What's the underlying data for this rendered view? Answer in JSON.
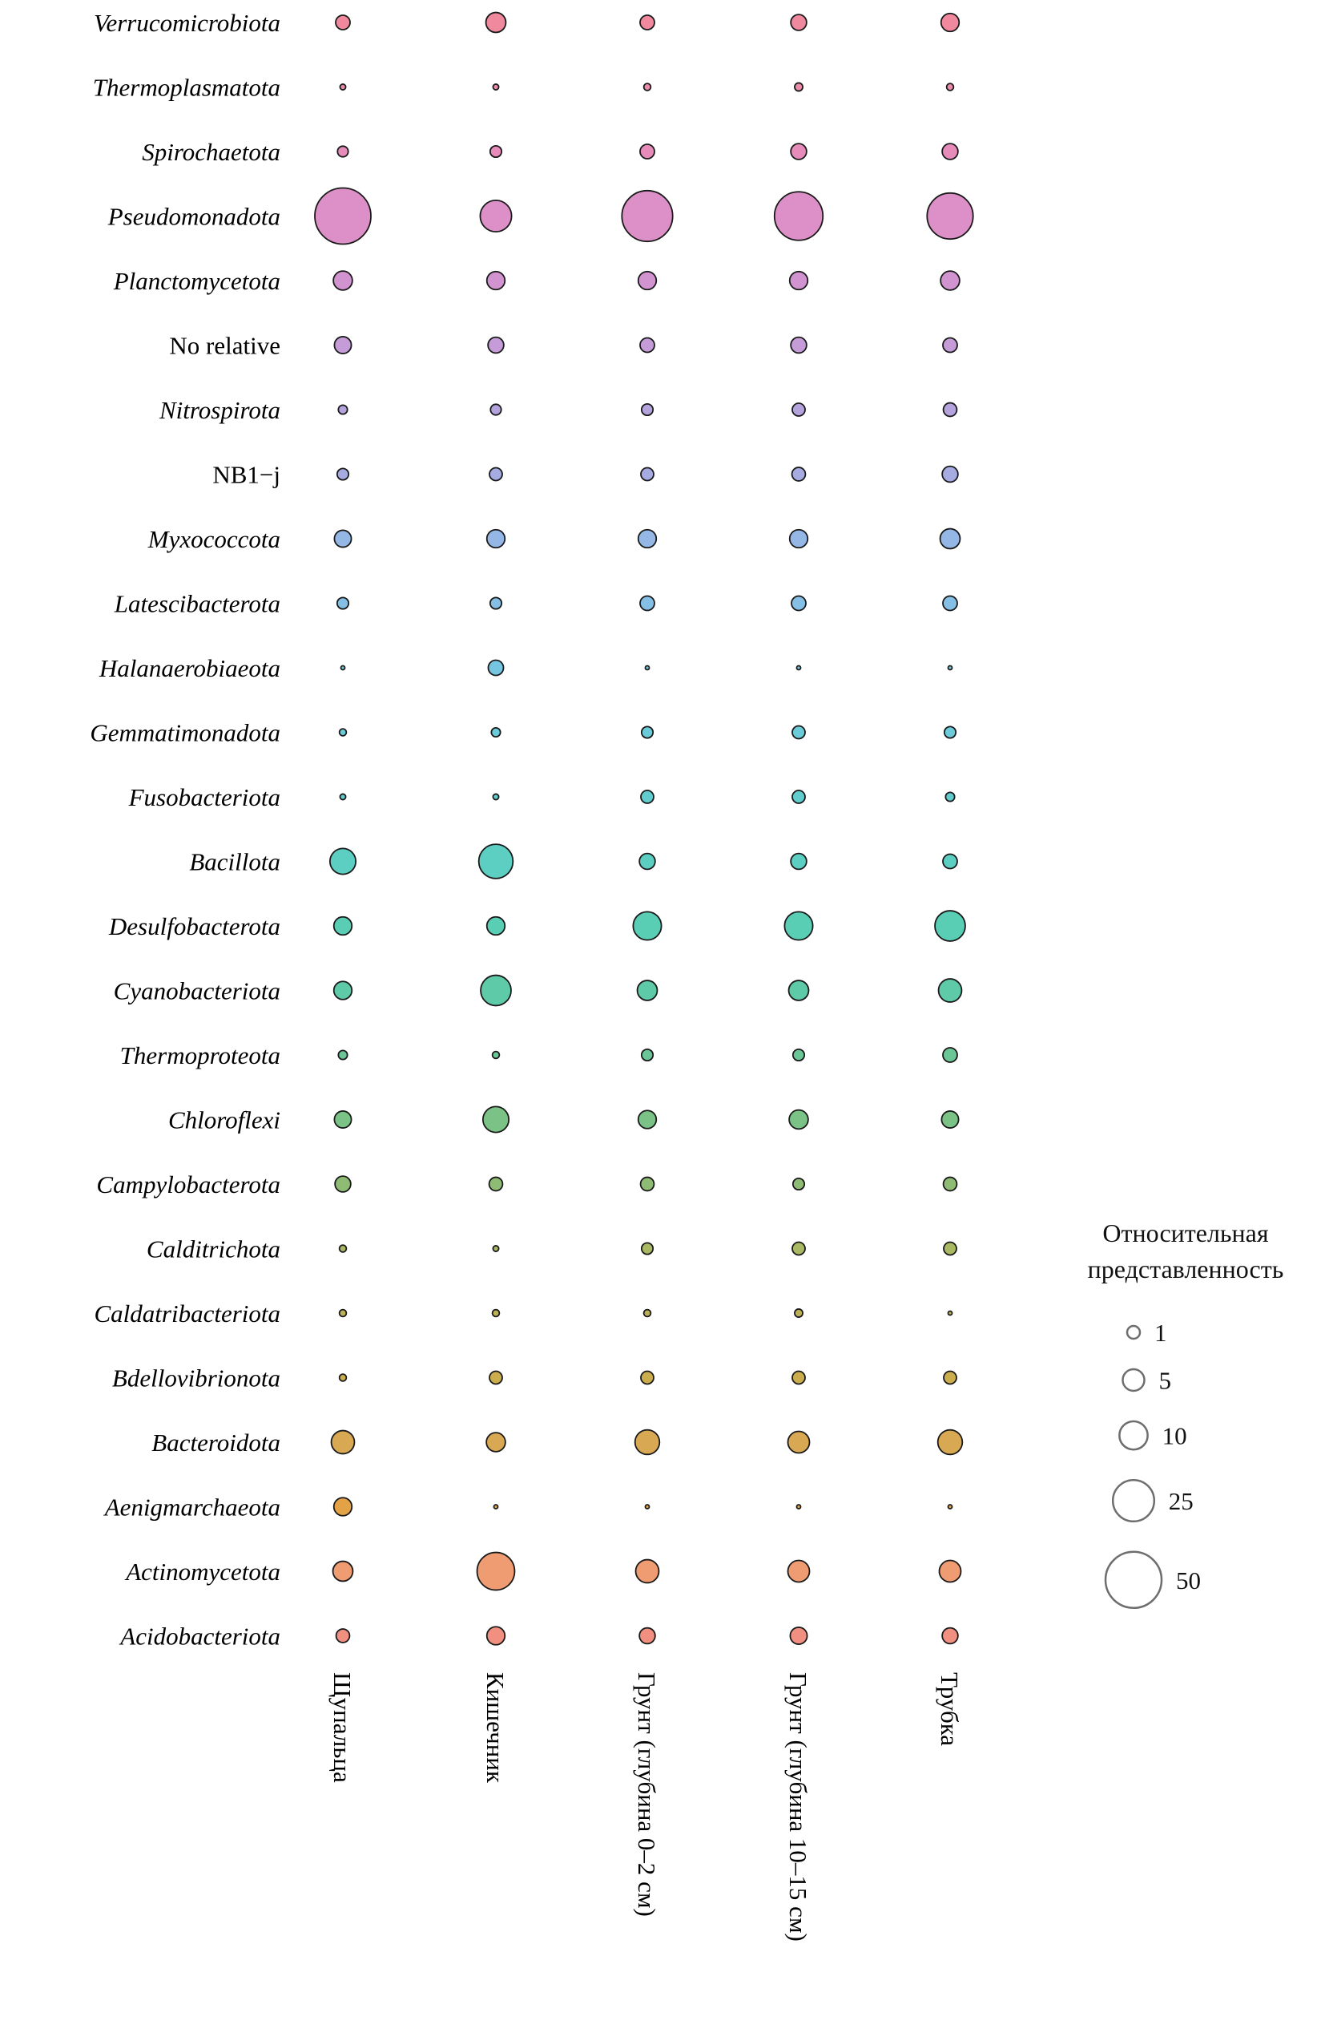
{
  "chart_data": {
    "type": "bubble",
    "title": "",
    "value_meaning": "relative abundance (bubble area)",
    "size_legend": {
      "title_line1": "Относительная",
      "title_line2": "представленность",
      "values": [
        1,
        5,
        10,
        25,
        50
      ]
    },
    "columns": [
      "Щупальца",
      "Кишечник",
      "Грунт (глубина 0–2 см)",
      "Грунт (глубина 10–15 см)",
      "Трубка"
    ],
    "rows": [
      {
        "taxon": "Verrucomicrobiota",
        "italic": true,
        "color": "#F0899D",
        "values": [
          1.5,
          4,
          1.5,
          2,
          3
        ]
      },
      {
        "taxon": "Thermoplasmatota",
        "italic": true,
        "color": "#ED8BAA",
        "values": [
          0.2,
          0.2,
          0.3,
          0.4,
          0.3
        ]
      },
      {
        "taxon": "Spirochaetota",
        "italic": true,
        "color": "#E78CBA",
        "values": [
          0.7,
          0.8,
          1.5,
          2,
          2
        ]
      },
      {
        "taxon": "Pseudomonadota",
        "italic": true,
        "color": "#DD90C8",
        "values": [
          50,
          13,
          40,
          36,
          32
        ]
      },
      {
        "taxon": "Planctomycetota",
        "italic": true,
        "color": "#D294D1",
        "values": [
          3.5,
          3,
          3,
          3,
          3.5
        ]
      },
      {
        "taxon": "No relative",
        "italic": false,
        "color": "#C59CD8",
        "values": [
          2.5,
          2,
          1.5,
          2,
          1.5
        ]
      },
      {
        "taxon": "Nitrospirota",
        "italic": true,
        "color": "#B5A3DD",
        "values": [
          0.5,
          0.7,
          0.8,
          1,
          1.2
        ]
      },
      {
        "taxon": "NB1−j",
        "italic": false,
        "color": "#A6ACE1",
        "values": [
          0.8,
          1,
          1,
          1.2,
          2
        ]
      },
      {
        "taxon": "Myxococcota",
        "italic": true,
        "color": "#94B7E5",
        "values": [
          2.5,
          3,
          3,
          3,
          4
        ]
      },
      {
        "taxon": "Latescibacterota",
        "italic": true,
        "color": "#85BFE5",
        "values": [
          0.8,
          0.8,
          1.5,
          1.5,
          1.5
        ]
      },
      {
        "taxon": "Halanaerobiaeota",
        "italic": true,
        "color": "#77C6E1",
        "values": [
          0.1,
          1.8,
          0.1,
          0.1,
          0.1
        ]
      },
      {
        "taxon": "Gemmatimonadota",
        "italic": true,
        "color": "#6BCBD9",
        "values": [
          0.3,
          0.5,
          0.8,
          1,
          0.8
        ]
      },
      {
        "taxon": "Fusobacteriota",
        "italic": true,
        "color": "#62CDCE",
        "values": [
          0.2,
          0.2,
          1,
          1,
          0.5
        ]
      },
      {
        "taxon": "Bacillota",
        "italic": true,
        "color": "#5CCEC2",
        "values": [
          8,
          16,
          2,
          2,
          1.5
        ]
      },
      {
        "taxon": "Desulfobacterota",
        "italic": true,
        "color": "#5ACDB5",
        "values": [
          3,
          3,
          10,
          10,
          12
        ]
      },
      {
        "taxon": "Cyanobacteriota",
        "italic": true,
        "color": "#5FCAA7",
        "values": [
          3,
          12,
          4,
          4,
          6
        ]
      },
      {
        "taxon": "Thermoproteota",
        "italic": true,
        "color": "#6AC697",
        "values": [
          0.5,
          0.3,
          0.8,
          0.8,
          1.5
        ]
      },
      {
        "taxon": "Chloroflexi",
        "italic": true,
        "color": "#7BC286",
        "values": [
          2.5,
          8,
          3,
          3.5,
          2.5
        ]
      },
      {
        "taxon": "Campylobacterota",
        "italic": true,
        "color": "#8FBC74",
        "values": [
          2,
          1.2,
          1.2,
          0.8,
          1.2
        ]
      },
      {
        "taxon": "Calditrichota",
        "italic": true,
        "color": "#A9B862",
        "values": [
          0.3,
          0.2,
          0.8,
          1,
          1
        ]
      },
      {
        "taxon": "Caldatribacteriota",
        "italic": true,
        "color": "#BCB255",
        "values": [
          0.3,
          0.3,
          0.3,
          0.4,
          0.1
        ]
      },
      {
        "taxon": "Bdellovibrionota",
        "italic": true,
        "color": "#CBAD4E",
        "values": [
          0.3,
          1,
          1,
          1,
          1
        ]
      },
      {
        "taxon": "Bacteroidota",
        "italic": true,
        "color": "#D8A952",
        "values": [
          6,
          3.5,
          7,
          5,
          7
        ]
      },
      {
        "taxon": "Aenigmarchaeota",
        "italic": true,
        "color": "#E4A246",
        "values": [
          3,
          0.1,
          0.1,
          0.1,
          0.1
        ]
      },
      {
        "taxon": "Actinomycetota",
        "italic": true,
        "color": "#F09C72",
        "values": [
          4,
          20,
          6,
          5,
          5
        ]
      },
      {
        "taxon": "Acidobacteriota",
        "italic": true,
        "color": "#F19080",
        "values": [
          1.2,
          3,
          2,
          2.5,
          2
        ]
      }
    ],
    "layout_hints": {
      "grid": "off",
      "legend_position": "right",
      "x_labels_rotated": true,
      "bubble_stroke": "#1a1a1a",
      "legend_circle_stroke": "#6e6e6e"
    }
  }
}
